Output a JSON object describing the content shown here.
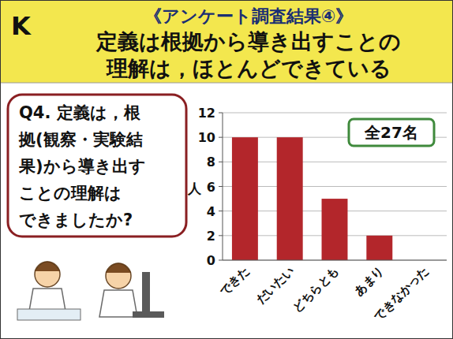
{
  "slide": {
    "letter": "K",
    "heading": [
      "《アンケート調査結果④》",
      "定義は根拠から導き出すことの",
      "理解は，ほとんどできている"
    ],
    "question": [
      "Q4. 定義は，根",
      "拠(観察・実験結",
      "果)から導き出す",
      "ことの理解は",
      "できましたか?"
    ]
  },
  "chart_data": {
    "type": "bar",
    "categories": [
      "できた",
      "だいたい",
      "どちらとも",
      "あまり",
      "できなかった"
    ],
    "values": [
      10,
      10,
      5,
      2,
      0
    ],
    "color": "#b3262b",
    "ylim": [
      0,
      12
    ],
    "yticks": [
      0,
      2,
      4,
      6,
      8,
      10,
      12
    ],
    "grid": true,
    "y_label": "人",
    "annotation": "全27名"
  }
}
